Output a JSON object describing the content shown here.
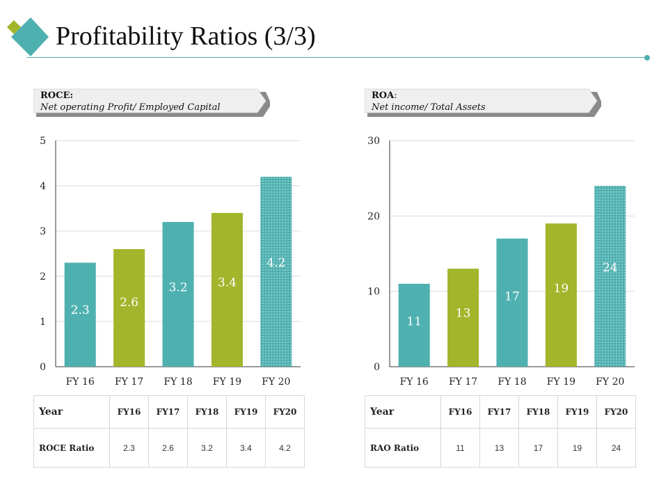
{
  "header": {
    "title": "Profitability Ratios (3/3)",
    "logo_icon": "diamond-logo-icon"
  },
  "colors": {
    "teal": "#4fb0b0",
    "green": "#a3b52a",
    "accent_line": "#5aa8a8",
    "callout_bg": "#efefef"
  },
  "panels": [
    {
      "callout": {
        "heading": "ROCE:",
        "subtitle": "Net operating Profit/ Employed Capital"
      },
      "table": {
        "header_label": "Year",
        "columns": [
          "FY16",
          "FY17",
          "FY18",
          "FY19",
          "FY20"
        ],
        "row_label": "ROCE Ratio",
        "values": [
          "2.3",
          "2.6",
          "3.2",
          "3.4",
          "4.2"
        ]
      }
    },
    {
      "callout": {
        "heading": "ROA",
        "heading_suffix": ":",
        "subtitle": "Net income/ Total Assets"
      },
      "table": {
        "header_label": "Year",
        "columns": [
          "FY16",
          "FY17",
          "FY18",
          "FY19",
          "FY20"
        ],
        "row_label": "RAO Ratio",
        "values": [
          "11",
          "13",
          "17",
          "19",
          "24"
        ]
      }
    }
  ],
  "chart_data": [
    {
      "type": "bar",
      "title": "ROCE",
      "categories": [
        "FY 16",
        "FY 17",
        "FY 18",
        "FY 19",
        "FY 20"
      ],
      "values": [
        2.3,
        2.6,
        3.2,
        3.4,
        4.2
      ],
      "data_labels": [
        "2.3",
        "2.6",
        "3.2",
        "3.4",
        "4.2"
      ],
      "bar_colors": [
        "teal",
        "green",
        "teal",
        "green",
        "teal-dotted"
      ],
      "ylim": [
        0,
        5
      ],
      "yticks": [
        0,
        1,
        2,
        3,
        4,
        5
      ],
      "grid": true,
      "xlabel": "",
      "ylabel": ""
    },
    {
      "type": "bar",
      "title": "ROA",
      "categories": [
        "FY 16",
        "FY 17",
        "FY 18",
        "FY 19",
        "FY 20"
      ],
      "values": [
        11,
        13,
        17,
        19,
        24
      ],
      "data_labels": [
        "11",
        "13",
        "17",
        "19",
        "24"
      ],
      "bar_colors": [
        "teal",
        "green",
        "teal",
        "green",
        "teal-dotted"
      ],
      "ylim": [
        0,
        30
      ],
      "yticks": [
        0,
        10,
        20,
        30
      ],
      "grid": true,
      "xlabel": "",
      "ylabel": ""
    }
  ]
}
